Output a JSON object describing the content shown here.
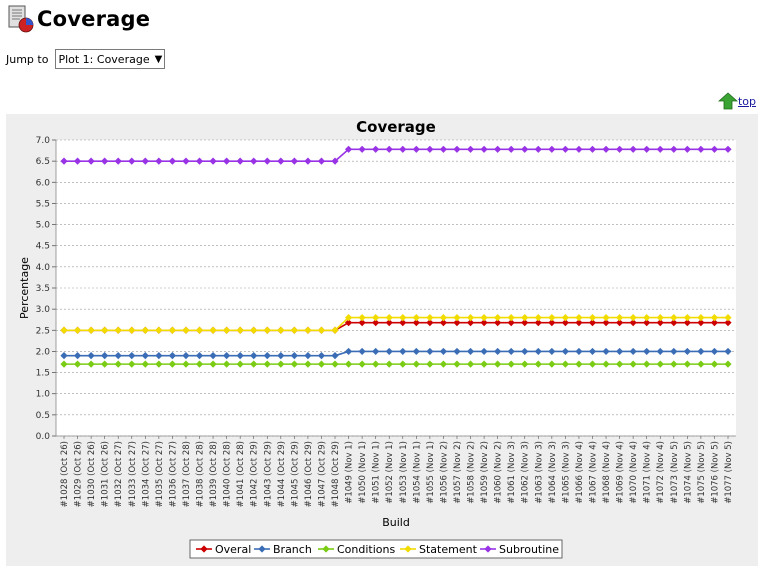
{
  "page": {
    "title": "Coverage",
    "jump_label": "Jump to",
    "jump_selected": "Plot 1: Coverage",
    "top_link": "top"
  },
  "colors": {
    "background": "#eeeeee",
    "grid": "#999999",
    "Overal": "#cc0000",
    "Branch": "#3a6db5",
    "Conditions": "#7acc14",
    "Statement": "#f2dc00",
    "Subroutine": "#9933e6"
  },
  "chart_data": {
    "type": "line",
    "title": "Coverage",
    "xlabel": "Build",
    "ylabel": "Percentage",
    "ylim": [
      0,
      7.0
    ],
    "yticks": [
      "0.0",
      "0.5",
      "1.0",
      "1.5",
      "2.0",
      "2.5",
      "3.0",
      "3.5",
      "4.0",
      "4.5",
      "5.0",
      "5.5",
      "6.0",
      "6.5",
      "7.0"
    ],
    "grid": true,
    "legend_position": "bottom",
    "categories": [
      "#1028 (Oct 26)",
      "#1029 (Oct 26)",
      "#1030 (Oct 26)",
      "#1031 (Oct 26)",
      "#1032 (Oct 27)",
      "#1033 (Oct 27)",
      "#1034 (Oct 27)",
      "#1035 (Oct 27)",
      "#1036 (Oct 27)",
      "#1037 (Oct 28)",
      "#1038 (Oct 28)",
      "#1039 (Oct 28)",
      "#1040 (Oct 28)",
      "#1041 (Oct 28)",
      "#1042 (Oct 29)",
      "#1043 (Oct 29)",
      "#1044 (Oct 29)",
      "#1045 (Oct 29)",
      "#1046 (Oct 29)",
      "#1047 (Oct 29)",
      "#1048 (Oct 29)",
      "#1049 (Nov 1)",
      "#1050 (Nov 1)",
      "#1051 (Nov 1)",
      "#1052 (Nov 1)",
      "#1053 (Nov 1)",
      "#1054 (Nov 1)",
      "#1055 (Nov 1)",
      "#1056 (Nov 2)",
      "#1057 (Nov 2)",
      "#1058 (Nov 2)",
      "#1059 (Nov 2)",
      "#1060 (Nov 2)",
      "#1061 (Nov 3)",
      "#1062 (Nov 3)",
      "#1063 (Nov 3)",
      "#1064 (Nov 3)",
      "#1065 (Nov 3)",
      "#1066 (Nov 4)",
      "#1067 (Nov 4)",
      "#1068 (Nov 4)",
      "#1069 (Nov 4)",
      "#1070 (Nov 4)",
      "#1071 (Nov 4)",
      "#1072 (Nov 4)",
      "#1073 (Nov 5)",
      "#1074 (Nov 5)",
      "#1075 (Nov 5)",
      "#1076 (Nov 5)",
      "#1077 (Nov 5)"
    ],
    "series": [
      {
        "name": "Overal",
        "color": "#cc0000",
        "values": [
          2.5,
          2.5,
          2.5,
          2.5,
          2.5,
          2.5,
          2.5,
          2.5,
          2.5,
          2.5,
          2.5,
          2.5,
          2.5,
          2.5,
          2.5,
          2.5,
          2.5,
          2.5,
          2.5,
          2.5,
          2.5,
          2.68,
          2.68,
          2.68,
          2.68,
          2.68,
          2.68,
          2.68,
          2.68,
          2.68,
          2.68,
          2.68,
          2.68,
          2.68,
          2.68,
          2.68,
          2.68,
          2.68,
          2.68,
          2.68,
          2.68,
          2.68,
          2.68,
          2.68,
          2.68,
          2.68,
          2.68,
          2.68,
          2.68,
          2.68
        ]
      },
      {
        "name": "Branch",
        "color": "#3a6db5",
        "values": [
          1.9,
          1.9,
          1.9,
          1.9,
          1.9,
          1.9,
          1.9,
          1.9,
          1.9,
          1.9,
          1.9,
          1.9,
          1.9,
          1.9,
          1.9,
          1.9,
          1.9,
          1.9,
          1.9,
          1.9,
          1.9,
          2.0,
          2.0,
          2.0,
          2.0,
          2.0,
          2.0,
          2.0,
          2.0,
          2.0,
          2.0,
          2.0,
          2.0,
          2.0,
          2.0,
          2.0,
          2.0,
          2.0,
          2.0,
          2.0,
          2.0,
          2.0,
          2.0,
          2.0,
          2.0,
          2.0,
          2.0,
          2.0,
          2.0,
          2.0
        ]
      },
      {
        "name": "Conditions",
        "color": "#7acc14",
        "values": [
          1.7,
          1.7,
          1.7,
          1.7,
          1.7,
          1.7,
          1.7,
          1.7,
          1.7,
          1.7,
          1.7,
          1.7,
          1.7,
          1.7,
          1.7,
          1.7,
          1.7,
          1.7,
          1.7,
          1.7,
          1.7,
          1.7,
          1.7,
          1.7,
          1.7,
          1.7,
          1.7,
          1.7,
          1.7,
          1.7,
          1.7,
          1.7,
          1.7,
          1.7,
          1.7,
          1.7,
          1.7,
          1.7,
          1.7,
          1.7,
          1.7,
          1.7,
          1.7,
          1.7,
          1.7,
          1.7,
          1.7,
          1.7,
          1.7,
          1.7
        ]
      },
      {
        "name": "Statement",
        "color": "#f2dc00",
        "values": [
          2.5,
          2.5,
          2.5,
          2.5,
          2.5,
          2.5,
          2.5,
          2.5,
          2.5,
          2.5,
          2.5,
          2.5,
          2.5,
          2.5,
          2.5,
          2.5,
          2.5,
          2.5,
          2.5,
          2.5,
          2.5,
          2.8,
          2.8,
          2.8,
          2.8,
          2.8,
          2.8,
          2.8,
          2.8,
          2.8,
          2.8,
          2.8,
          2.8,
          2.8,
          2.8,
          2.8,
          2.8,
          2.8,
          2.8,
          2.8,
          2.8,
          2.8,
          2.8,
          2.8,
          2.8,
          2.8,
          2.8,
          2.8,
          2.8,
          2.8
        ]
      },
      {
        "name": "Subroutine",
        "color": "#9933e6",
        "values": [
          6.5,
          6.5,
          6.5,
          6.5,
          6.5,
          6.5,
          6.5,
          6.5,
          6.5,
          6.5,
          6.5,
          6.5,
          6.5,
          6.5,
          6.5,
          6.5,
          6.5,
          6.5,
          6.5,
          6.5,
          6.5,
          6.78,
          6.78,
          6.78,
          6.78,
          6.78,
          6.78,
          6.78,
          6.78,
          6.78,
          6.78,
          6.78,
          6.78,
          6.78,
          6.78,
          6.78,
          6.78,
          6.78,
          6.78,
          6.78,
          6.78,
          6.78,
          6.78,
          6.78,
          6.78,
          6.78,
          6.78,
          6.78,
          6.78,
          6.78
        ]
      }
    ]
  }
}
